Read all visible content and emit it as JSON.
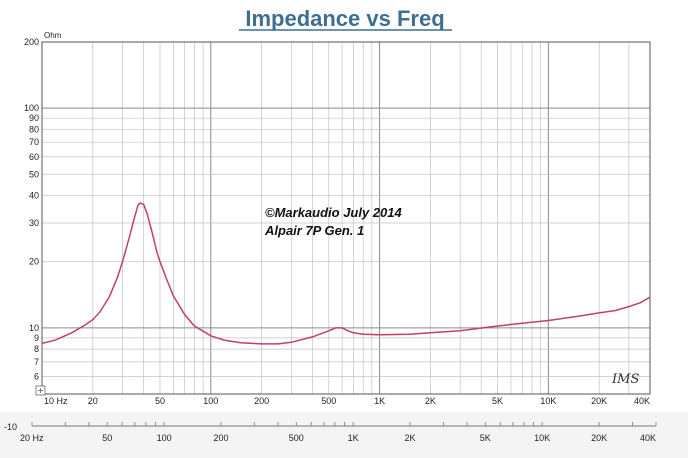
{
  "chart_data": {
    "type": "line",
    "title": "Impedance vs Freq",
    "y_unit_label": "Ohm",
    "x_scale": "log",
    "y_scale": "log",
    "xlim": [
      10,
      40000
    ],
    "ylim": [
      5,
      200
    ],
    "grid": true,
    "y_tick_labels": [
      "200",
      "100",
      "90",
      "80",
      "70",
      "60",
      "50",
      "40",
      "30",
      "20",
      "10",
      "9",
      "8",
      "7",
      "6"
    ],
    "y_tick_values": [
      200,
      100,
      90,
      80,
      70,
      60,
      50,
      40,
      30,
      20,
      10,
      9,
      8,
      7,
      6
    ],
    "x_tick_labels": [
      "10 Hz",
      "20",
      "50",
      "100",
      "200",
      "500",
      "1K",
      "2K",
      "5K",
      "10K",
      "20K",
      "40K"
    ],
    "x_tick_values": [
      10,
      20,
      50,
      100,
      200,
      500,
      1000,
      2000,
      5000,
      10000,
      20000,
      40000
    ],
    "annotations": [
      "©Markaudio July 2014",
      "Alpair 7P Gen. 1"
    ],
    "watermark": "IMS",
    "series_color": "#c0435c",
    "series": [
      {
        "x": [
          10,
          12,
          15,
          18,
          20,
          22,
          25,
          28,
          30,
          33,
          35,
          37,
          38,
          40,
          42,
          45,
          48,
          50,
          55,
          60,
          70,
          80,
          100,
          120,
          150,
          200,
          250,
          300,
          400,
          500,
          550,
          600,
          650,
          700,
          800,
          1000,
          1500,
          2000,
          3000,
          5000,
          7000,
          10000,
          15000,
          20000,
          25000,
          30000,
          35000,
          40000
        ],
        "y": [
          8.5,
          8.8,
          9.5,
          10.3,
          10.9,
          11.8,
          13.8,
          17,
          20,
          26,
          31,
          36,
          37,
          36.5,
          33,
          27,
          22,
          20,
          16.5,
          14,
          11.5,
          10.2,
          9.2,
          8.8,
          8.55,
          8.45,
          8.45,
          8.6,
          9.1,
          9.7,
          10.0,
          10.0,
          9.7,
          9.5,
          9.35,
          9.3,
          9.35,
          9.5,
          9.7,
          10.2,
          10.5,
          10.8,
          11.3,
          11.7,
          12.0,
          12.5,
          13.0,
          13.8
        ]
      }
    ]
  },
  "lower_axis": {
    "tick_labels": [
      "20 Hz",
      "50",
      "100",
      "200",
      "500",
      "1K",
      "2K",
      "5K",
      "10K",
      "20K",
      "40K"
    ],
    "tick_values": [
      20,
      50,
      100,
      200,
      500,
      1000,
      2000,
      5000,
      10000,
      20000,
      40000
    ],
    "xlim": [
      20,
      40000
    ],
    "left_label": "-10"
  }
}
